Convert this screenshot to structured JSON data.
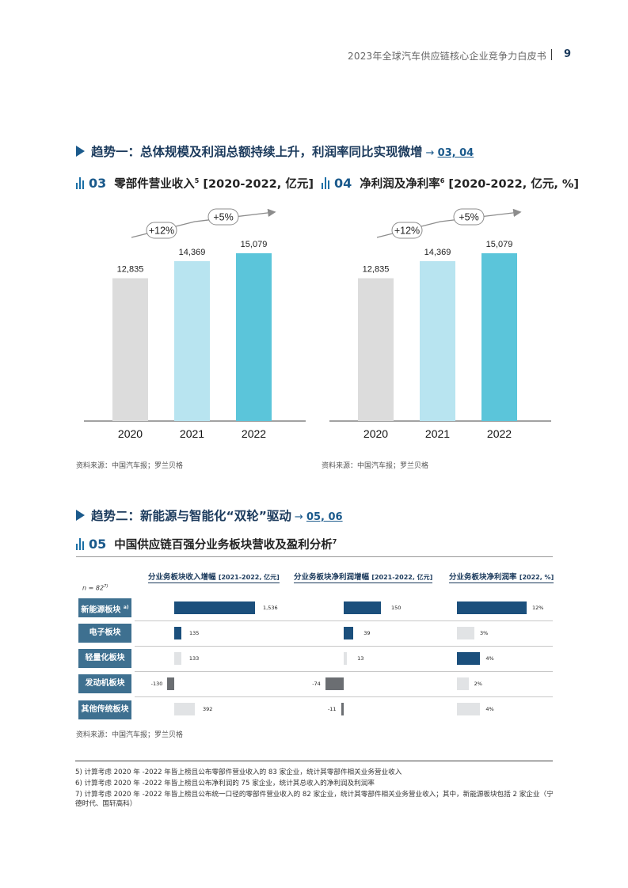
{
  "header": {
    "title": "2023年全球汽车供应链核心企业竞争力白皮书",
    "page": "9"
  },
  "trend1": {
    "text": "趋势一：总体规模及利润总额持续上升，利润率同比实现微增",
    "arrow": "→",
    "ref": "03, 04"
  },
  "fig03": {
    "num": "03",
    "title": "零部件营业收入",
    "sup": "5",
    "unit": "[2020-2022, 亿元]",
    "source": "资料来源：中国汽车报；罗兰贝格",
    "chart_data": {
      "type": "bar",
      "categories": [
        "2020",
        "2021",
        "2022"
      ],
      "values": [
        12835,
        14369,
        15079
      ],
      "value_labels": [
        "12,835",
        "14,369",
        "15,079"
      ],
      "annotations": [
        "+12%",
        "+5%"
      ],
      "colors": [
        "#dcdcdc",
        "#b8e4f0",
        "#5bc5da"
      ]
    }
  },
  "fig04": {
    "num": "04",
    "title": "净利润及净利率",
    "sup": "6",
    "unit": "[2020-2022, 亿元, %]",
    "source": "资料来源：中国汽车报；罗兰贝格",
    "chart_data": {
      "type": "bar",
      "categories": [
        "2020",
        "2021",
        "2022"
      ],
      "values": [
        12835,
        14369,
        15079
      ],
      "value_labels": [
        "12,835",
        "14,369",
        "15,079"
      ],
      "annotations": [
        "+12%",
        "+5%"
      ],
      "colors": [
        "#dcdcdc",
        "#b8e4f0",
        "#5bc5da"
      ]
    }
  },
  "trend2": {
    "text": "趋势二：新能源与智能化“双轮”驱动",
    "arrow": "→",
    "ref": "05, 06"
  },
  "fig05": {
    "num": "05",
    "title": "中国供应链百强分业务板块营收及盈利分析",
    "sup": "7",
    "n_label": "n = 82",
    "n_sup": "7)",
    "col_headers": [
      {
        "title": "分业务板块收入增幅 ",
        "unit": "[2021-2022, 亿元]"
      },
      {
        "title": "分业务板块净利润增幅 ",
        "unit": "[2021-2022, 亿元]"
      },
      {
        "title": "分业务板块净利润率 ",
        "unit": "[2022, %]"
      }
    ],
    "rows": [
      {
        "label": "新能源板块",
        "sup": "a)"
      },
      {
        "label": "电子板块",
        "sup": ""
      },
      {
        "label": "轻量化板块",
        "sup": ""
      },
      {
        "label": "发动机板块",
        "sup": ""
      },
      {
        "label": "其他传统板块",
        "sup": ""
      }
    ],
    "source": "资料来源：中国汽车报；罗兰贝格",
    "chart_data": [
      {
        "type": "bar",
        "name": "分业务板块收入增幅",
        "categories": [
          "新能源板块",
          "电子板块",
          "轻量化板块",
          "发动机板块",
          "其他传统板块"
        ],
        "values": [
          1536,
          135,
          133,
          -130,
          392
        ],
        "value_labels": [
          "1,536",
          "135",
          "133",
          "-130",
          "392"
        ]
      },
      {
        "type": "bar",
        "name": "分业务板块净利润增幅",
        "categories": [
          "新能源板块",
          "电子板块",
          "轻量化板块",
          "发动机板块",
          "其他传统板块"
        ],
        "values": [
          150,
          39,
          13,
          -74,
          -11
        ],
        "value_labels": [
          "150",
          "39",
          "13",
          "-74",
          "-11"
        ]
      },
      {
        "type": "bar",
        "name": "分业务板块净利润率",
        "categories": [
          "新能源板块",
          "电子板块",
          "轻量化板块",
          "发动机板块",
          "其他传统板块"
        ],
        "values": [
          12,
          3,
          4,
          2,
          4
        ],
        "value_labels": [
          "12%",
          "3%",
          "4%",
          "2%",
          "4%"
        ]
      }
    ],
    "colors": {
      "dark": "#1b4f7c",
      "light": "#e1e3e5",
      "negative": "#6b6e72"
    }
  },
  "notes": [
    "5) 计算考虑 2020 年 -2022 年皆上榜且公布零部件营业收入的 83 家企业，统计其零部件相关业务营业收入",
    "6) 计算考虑 2020 年 -2022 年皆上榜且公布净利润的 75 家企业，统计其总收入的净利润及利润率",
    "7) 计算考虑 2020 年 -2022 年皆上榜且公布统一口径的零部件营业收入的 82 家企业，统计其零部件相关业务营业收入；其中，新能源板块包括 2 家企业（宁德时代、国轩高科）"
  ]
}
